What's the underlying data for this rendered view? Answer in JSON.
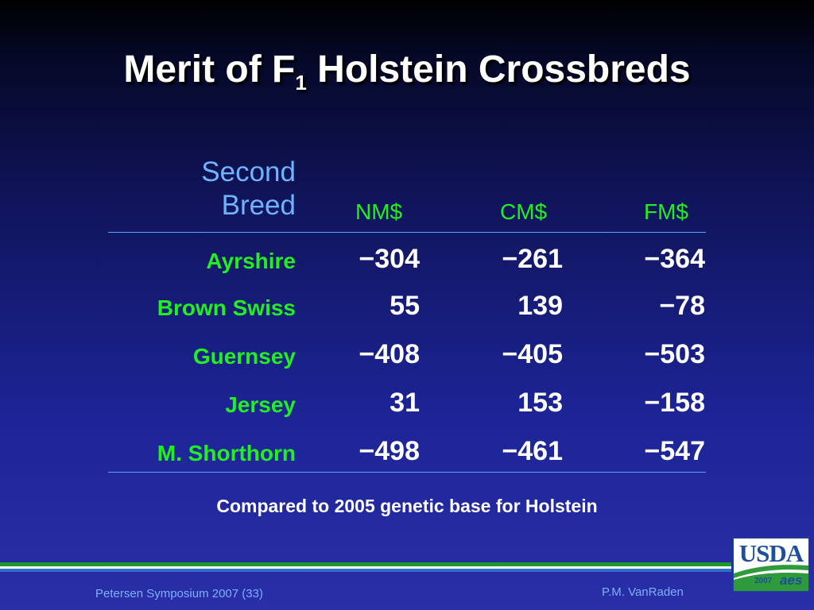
{
  "slide": {
    "title_main": "Merit of F",
    "title_sub": "1",
    "title_rest": " Holstein Crossbreds"
  },
  "table": {
    "header_breed_line1": "Second",
    "header_breed_line2": "Breed",
    "columns": [
      "NM$",
      "CM$",
      "FM$"
    ],
    "rows": [
      {
        "breed": "Ayrshire",
        "values": [
          "−304",
          "−261",
          "−364"
        ]
      },
      {
        "breed": "Brown Swiss",
        "values": [
          "55",
          "139",
          "−78"
        ]
      },
      {
        "breed": "Guernsey",
        "values": [
          "−408",
          "−405",
          "−503"
        ]
      },
      {
        "breed": "Jersey",
        "values": [
          "31",
          "153",
          "−158"
        ]
      },
      {
        "breed": "M. Shorthorn",
        "values": [
          "−498",
          "−461",
          "−547"
        ]
      }
    ],
    "note": "Compared to 2005 genetic base for Holstein"
  },
  "footer": {
    "left": "Petersen Symposium 2007 (33)",
    "right": "P.M. VanRaden"
  },
  "logo": {
    "text": "USDA",
    "year": "2007",
    "mark": "aes"
  },
  "colors": {
    "label_green": "#22ee22",
    "header_blue": "#6fb3ff",
    "rule_blue": "#58a8ff",
    "footer_blue": "#7fb0ff"
  }
}
